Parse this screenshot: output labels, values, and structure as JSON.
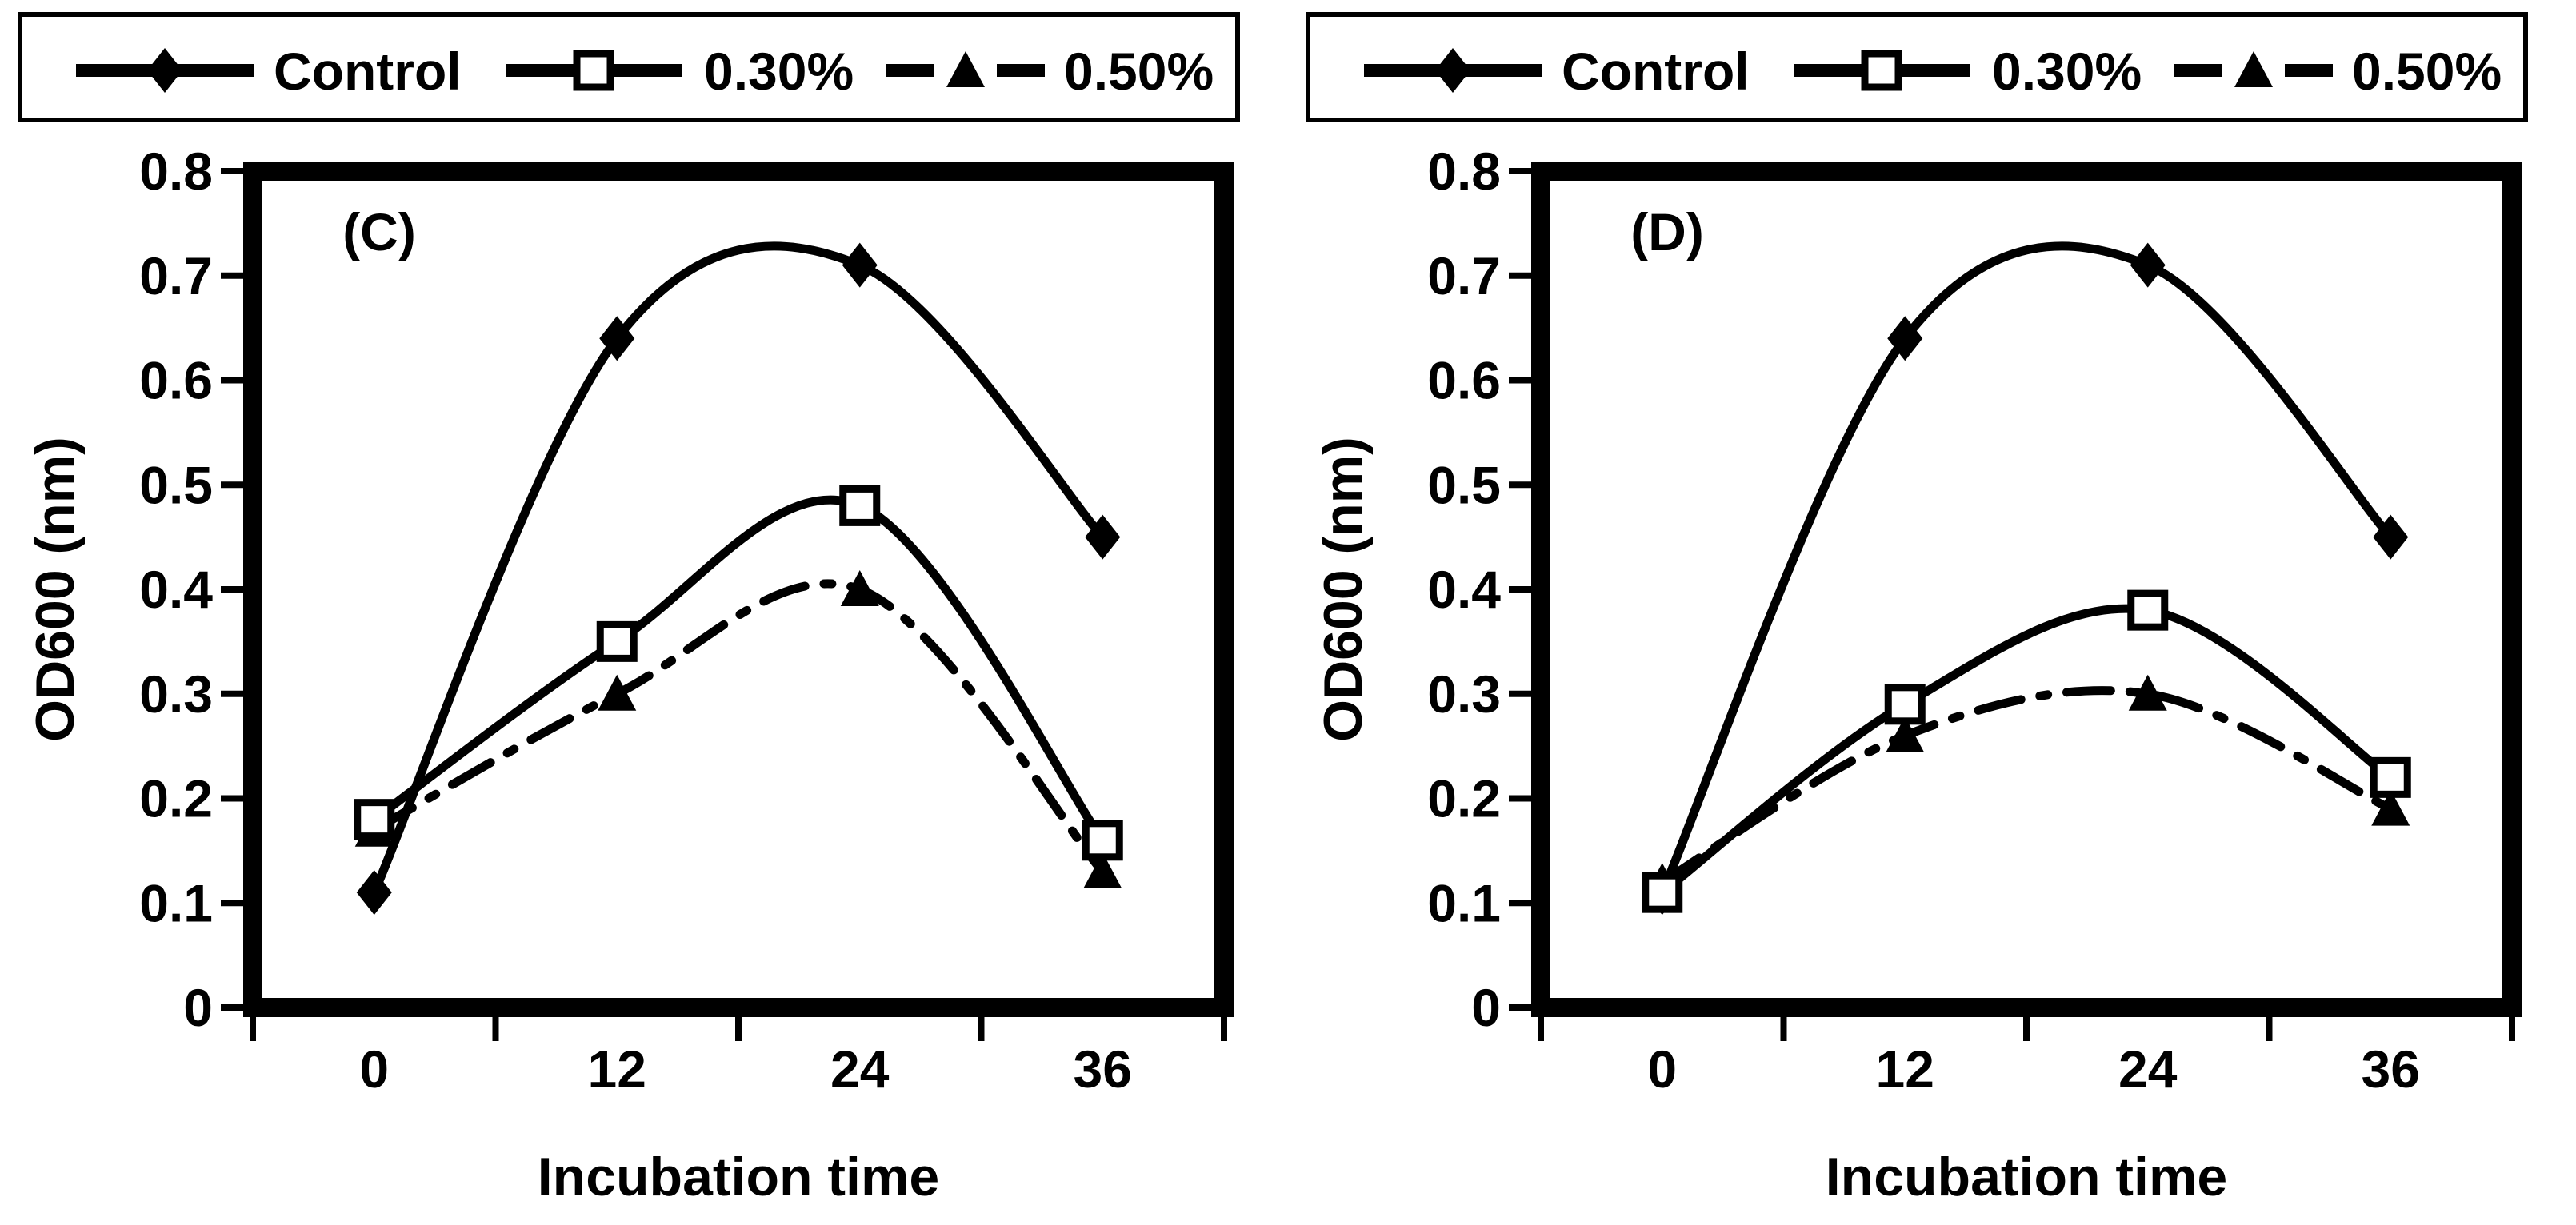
{
  "figure": {
    "background": "#ffffff",
    "ink_color": "#000000",
    "panel_count": 2
  },
  "legend": {
    "position": "top",
    "entries": [
      {
        "label": "Control",
        "marker": "diamond-filled-icon",
        "line_style": "solid"
      },
      {
        "label": "0.30%",
        "marker": "square-open-icon",
        "line_style": "solid"
      },
      {
        "label": "0.50%",
        "marker": "triangle-filled-icon",
        "line_style": "dash-dot"
      }
    ]
  },
  "chart_data": [
    {
      "type": "line",
      "panel_label": "(C)",
      "title": "",
      "xlabel": "Incubation time",
      "ylabel": "OD600 (nm)",
      "x_categories": [
        "0",
        "12",
        "24",
        "36"
      ],
      "ylim": [
        0,
        0.8
      ],
      "ytick_labels": [
        "0",
        "0.1",
        "0.2",
        "0.3",
        "0.4",
        "0.5",
        "0.6",
        "0.7",
        "0.8"
      ],
      "grid": false,
      "legend_position": "top",
      "smoothed_lines": true,
      "line_color": "#000000",
      "series": [
        {
          "name": "Control",
          "marker": "diamond-filled",
          "line_style": "solid",
          "values": [
            0.11,
            0.64,
            0.71,
            0.45
          ]
        },
        {
          "name": "0.30%",
          "marker": "square-open",
          "line_style": "solid",
          "values": [
            0.18,
            0.35,
            0.48,
            0.16
          ]
        },
        {
          "name": "0.50%",
          "marker": "triangle-filled",
          "line_style": "dash-dot",
          "values": [
            0.17,
            0.3,
            0.4,
            0.13
          ]
        }
      ]
    },
    {
      "type": "line",
      "panel_label": "(D)",
      "title": "",
      "xlabel": "Incubation time",
      "ylabel": "OD600 (nm)",
      "x_categories": [
        "0",
        "12",
        "24",
        "36"
      ],
      "ylim": [
        0,
        0.8
      ],
      "ytick_labels": [
        "0",
        "0.1",
        "0.2",
        "0.3",
        "0.4",
        "0.5",
        "0.6",
        "0.7",
        "0.8"
      ],
      "grid": false,
      "legend_position": "top",
      "smoothed_lines": true,
      "line_color": "#000000",
      "series": [
        {
          "name": "Control",
          "marker": "diamond-filled",
          "line_style": "solid",
          "values": [
            0.11,
            0.64,
            0.71,
            0.45
          ]
        },
        {
          "name": "0.30%",
          "marker": "square-open",
          "line_style": "solid",
          "values": [
            0.11,
            0.29,
            0.38,
            0.22
          ]
        },
        {
          "name": "0.50%",
          "marker": "triangle-filled",
          "line_style": "dash-dot",
          "values": [
            0.12,
            0.26,
            0.3,
            0.19
          ]
        }
      ]
    }
  ]
}
